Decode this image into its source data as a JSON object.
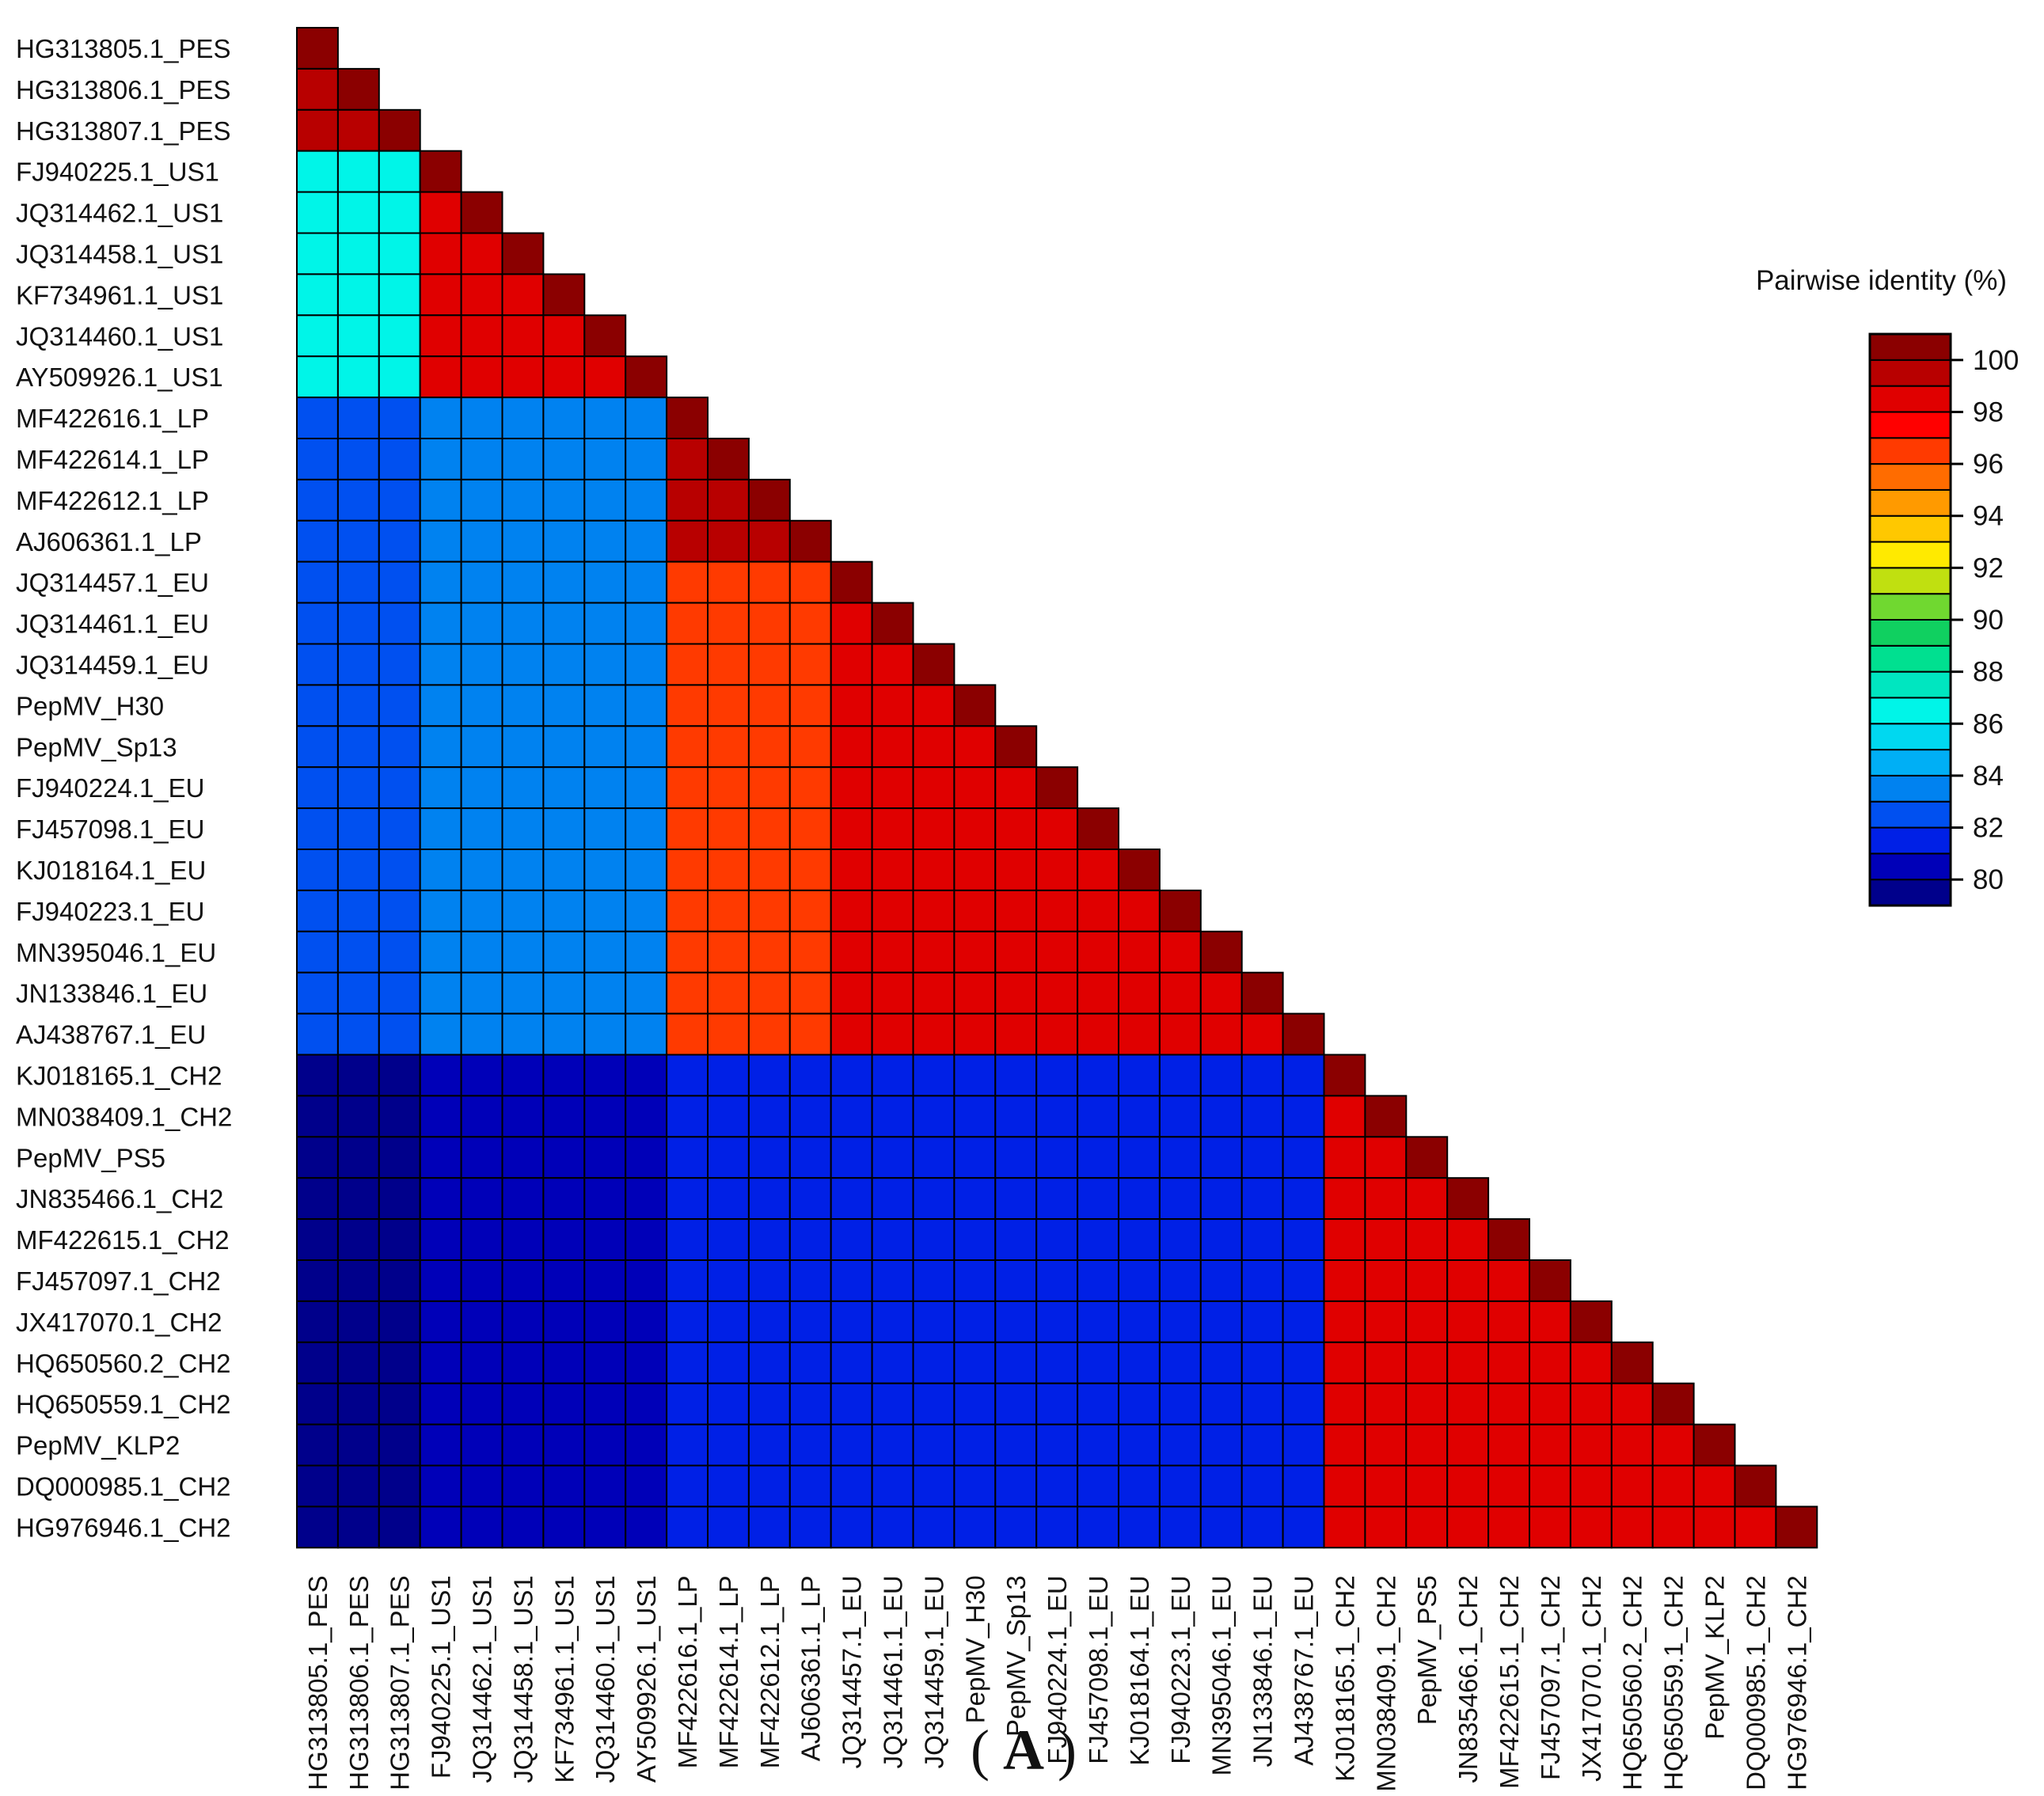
{
  "chart_data": {
    "type": "heatmap",
    "title": "",
    "panel_label": "A",
    "layout": "lower-triangle",
    "labels": [
      "HG313805.1_PES",
      "HG313806.1_PES",
      "HG313807.1_PES",
      "FJ940225.1_US1",
      "JQ314462.1_US1",
      "JQ314458.1_US1",
      "KF734961.1_US1",
      "JQ314460.1_US1",
      "AY509926.1_US1",
      "MF422616.1_LP",
      "MF422614.1_LP",
      "MF422612.1_LP",
      "AJ606361.1_LP",
      "JQ314457.1_EU",
      "JQ314461.1_EU",
      "JQ314459.1_EU",
      "PepMV_H30",
      "PepMV_Sp13",
      "FJ940224.1_EU",
      "FJ457098.1_EU",
      "KJ018164.1_EU",
      "FJ940223.1_EU",
      "MN395046.1_EU",
      "JN133846.1_EU",
      "AJ438767.1_EU",
      "KJ018165.1_CH2",
      "MN038409.1_CH2",
      "PepMV_PS5",
      "JN835466.1_CH2",
      "MF422615.1_CH2",
      "FJ457097.1_CH2",
      "JX417070.1_CH2",
      "HQ650560.2_CH2",
      "HQ650559.1_CH2",
      "PepMV_KLP2",
      "DQ000985.1_CH2",
      "HG976946.1_CH2"
    ],
    "groups": [
      {
        "name": "PES",
        "start": 0,
        "end": 2
      },
      {
        "name": "US1",
        "start": 3,
        "end": 8
      },
      {
        "name": "LP",
        "start": 9,
        "end": 12
      },
      {
        "name": "EU",
        "start": 13,
        "end": 24
      },
      {
        "name": "CH2",
        "start": 25,
        "end": 36
      }
    ],
    "block_identity": [
      [
        99.8,
        86.8,
        82.9,
        82.9,
        79.8
      ],
      [
        86.8,
        98.8,
        83.0,
        83.1,
        80.0
      ],
      [
        82.9,
        83.0,
        99.5,
        96.0,
        81.2
      ],
      [
        82.9,
        83.1,
        96.0,
        98.5,
        81.3
      ],
      [
        79.8,
        80.0,
        81.2,
        81.3,
        98.3
      ]
    ],
    "diagonal_identity": 100,
    "legend": {
      "title": "Pairwise identity (%)",
      "placement": "right",
      "range": [
        79,
        101
      ],
      "ticks": [
        100,
        98,
        96,
        94,
        92,
        90,
        88,
        86,
        84,
        82,
        80
      ],
      "bins": [
        {
          "from": 79,
          "to": 80,
          "color": "#00008b"
        },
        {
          "from": 80,
          "to": 81,
          "color": "#0000b8"
        },
        {
          "from": 81,
          "to": 82,
          "color": "#0020e6"
        },
        {
          "from": 82,
          "to": 83,
          "color": "#0050f0"
        },
        {
          "from": 83,
          "to": 84,
          "color": "#0082f0"
        },
        {
          "from": 84,
          "to": 85,
          "color": "#00aff5"
        },
        {
          "from": 85,
          "to": 86,
          "color": "#00d8f0"
        },
        {
          "from": 86,
          "to": 87,
          "color": "#00f5e8"
        },
        {
          "from": 87,
          "to": 88,
          "color": "#00e6c0"
        },
        {
          "from": 88,
          "to": 89,
          "color": "#00e090"
        },
        {
          "from": 89,
          "to": 90,
          "color": "#10d060"
        },
        {
          "from": 90,
          "to": 91,
          "color": "#70d830"
        },
        {
          "from": 91,
          "to": 92,
          "color": "#c0e010"
        },
        {
          "from": 92,
          "to": 93,
          "color": "#ffea00"
        },
        {
          "from": 93,
          "to": 94,
          "color": "#ffc800"
        },
        {
          "from": 94,
          "to": 95,
          "color": "#ff9a00"
        },
        {
          "from": 95,
          "to": 96,
          "color": "#ff6c00"
        },
        {
          "from": 96,
          "to": 97,
          "color": "#ff3a00"
        },
        {
          "from": 97,
          "to": 98,
          "color": "#ff0000"
        },
        {
          "from": 98,
          "to": 99,
          "color": "#e00000"
        },
        {
          "from": 99,
          "to": 100,
          "color": "#b80000"
        },
        {
          "from": 100,
          "to": 101,
          "color": "#8b0000"
        }
      ]
    }
  }
}
